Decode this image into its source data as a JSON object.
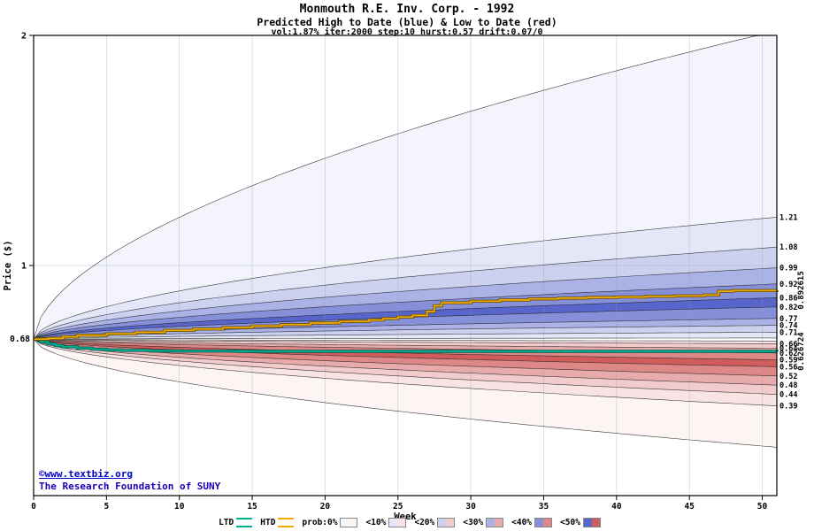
{
  "header": {
    "title": "Monmouth R.E. Inv. Corp. - 1992",
    "subtitle": "Predicted High to Date (blue) &  Low to Date (red)",
    "params": "vol:1.87% iter:2000 step:10 hurst:0.57 drift:0.07/0"
  },
  "footer": {
    "copyright": "©www.textbiz.org",
    "institution": "The Research Foundation of SUNY"
  },
  "chart_data": {
    "type": "area",
    "title": "Monmouth R.E. Inv. Corp. - 1992",
    "subtitle": "Predicted High to Date (blue) &  Low to Date (red)",
    "annotation": "vol:1.87% iter:2000 step:10 hurst:0.57 drift:0.07/0",
    "xlabel": "Week",
    "ylabel": "Price ($)",
    "xlim": [
      0,
      51
    ],
    "ylim": [
      0,
      2
    ],
    "xticks": [
      0,
      5,
      10,
      15,
      20,
      25,
      30,
      35,
      40,
      45,
      50
    ],
    "yticks": [
      1,
      2
    ],
    "grid": true,
    "legend_position": "bottom",
    "start_price": 0.68,
    "start_label": "0.68",
    "hurst_exponent": 0.57,
    "upper_fan": {
      "color_family": "blue",
      "boundaries": [
        0.685,
        0.71,
        0.74,
        0.77,
        0.82,
        0.86,
        0.92,
        0.99,
        1.08,
        1.21,
        2.02
      ],
      "levels": [
        1,
        2,
        3,
        4,
        5,
        4,
        3,
        2,
        1,
        0
      ],
      "labels": [
        "0.71",
        "0.74",
        "0.77",
        "0.82",
        "0.86",
        "0.92",
        "0.99",
        "1.08",
        "1.21"
      ]
    },
    "lower_fan": {
      "color_family": "red",
      "boundaries": [
        0.672,
        0.66,
        0.64,
        0.62,
        0.59,
        0.56,
        0.52,
        0.48,
        0.44,
        0.39,
        0.21
      ],
      "levels": [
        1,
        2,
        3,
        4,
        5,
        4,
        3,
        2,
        1,
        0
      ],
      "labels": [
        "0.66",
        "0.64",
        "0.62",
        "0.59",
        "0.56",
        "0.52",
        "0.48",
        "0.44",
        "0.39"
      ]
    },
    "htd_series": {
      "name": "HTD",
      "color": "#f2a900",
      "final_label": "0.892615",
      "points": [
        [
          0,
          0.68
        ],
        [
          1,
          0.683
        ],
        [
          2,
          0.69
        ],
        [
          3,
          0.697
        ],
        [
          5,
          0.703
        ],
        [
          7,
          0.71
        ],
        [
          9,
          0.718
        ],
        [
          11,
          0.724
        ],
        [
          13,
          0.73
        ],
        [
          15,
          0.737
        ],
        [
          17,
          0.743
        ],
        [
          19,
          0.75
        ],
        [
          21,
          0.757
        ],
        [
          23,
          0.763
        ],
        [
          24,
          0.77
        ],
        [
          25,
          0.776
        ],
        [
          26,
          0.783
        ],
        [
          27,
          0.8
        ],
        [
          27.5,
          0.825
        ],
        [
          28,
          0.838
        ],
        [
          30,
          0.845
        ],
        [
          32,
          0.85
        ],
        [
          34,
          0.855
        ],
        [
          36,
          0.858
        ],
        [
          38,
          0.861
        ],
        [
          40,
          0.863
        ],
        [
          42,
          0.866
        ],
        [
          44,
          0.868
        ],
        [
          46,
          0.872
        ],
        [
          47,
          0.888
        ],
        [
          48,
          0.891
        ],
        [
          51,
          0.892615
        ]
      ]
    },
    "ltd_series": {
      "name": "LTD",
      "color": "#00b295",
      "final_label": "0.626724",
      "points": [
        [
          0,
          0.68
        ],
        [
          0.5,
          0.668
        ],
        [
          1,
          0.659
        ],
        [
          1.5,
          0.652
        ],
        [
          2,
          0.647
        ],
        [
          3,
          0.641
        ],
        [
          4,
          0.636
        ],
        [
          5,
          0.633
        ],
        [
          6,
          0.631
        ],
        [
          8,
          0.629
        ],
        [
          10,
          0.628
        ],
        [
          14,
          0.627
        ],
        [
          51,
          0.626724
        ]
      ]
    },
    "shade_colors": {
      "blue": [
        "#f3f4fc",
        "#e4e7f7",
        "#ccd1f0",
        "#aab2e6",
        "#8590d9",
        "#5866cb"
      ],
      "red": [
        "#fdf4f4",
        "#f8e4e4",
        "#f2cccc",
        "#e8abab",
        "#dd8787",
        "#d05c5c"
      ]
    },
    "legend": [
      {
        "label": "LTD",
        "swatch": "line",
        "color": "#00b295"
      },
      {
        "label": "HTD",
        "swatch": "line",
        "color": "#f2a900"
      },
      {
        "label": "prob:0%",
        "swatch": "level",
        "level": 0
      },
      {
        "label": "<10%",
        "swatch": "level",
        "level": 1
      },
      {
        "label": "<20%",
        "swatch": "level",
        "level": 2
      },
      {
        "label": "<30%",
        "swatch": "level",
        "level": 3
      },
      {
        "label": "<40%",
        "swatch": "level",
        "level": 4
      },
      {
        "label": "<50%",
        "swatch": "level",
        "level": 5
      }
    ]
  }
}
